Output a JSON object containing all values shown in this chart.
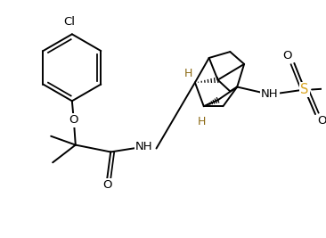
{
  "background_color": "#ffffff",
  "line_color": "#000000",
  "atom_colors": {
    "Cl": "#000000",
    "O": "#000000",
    "N": "#000000",
    "H": "#8B6914",
    "S": "#DAA520",
    "C": "#000000"
  },
  "line_width": 1.4,
  "figsize": [
    3.66,
    2.67
  ],
  "dpi": 100
}
